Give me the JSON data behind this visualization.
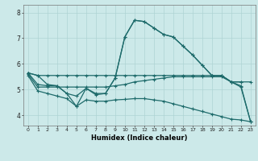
{
  "xlabel": "Humidex (Indice chaleur)",
  "x_ticks": [
    0,
    1,
    2,
    3,
    4,
    5,
    6,
    7,
    8,
    9,
    10,
    11,
    12,
    13,
    14,
    15,
    16,
    17,
    18,
    19,
    20,
    21,
    22,
    23
  ],
  "ylim": [
    3.6,
    8.3
  ],
  "xlim": [
    -0.5,
    23.5
  ],
  "bg_color": "#cce9e9",
  "line_color": "#1e6b6b",
  "grid_color": "#aed4d4",
  "lines": [
    [
      5.65,
      5.55,
      5.55,
      5.55,
      5.55,
      5.55,
      5.55,
      5.55,
      5.55,
      5.55,
      5.55,
      5.55,
      5.55,
      5.55,
      5.55,
      5.55,
      5.55,
      5.55,
      5.55,
      5.55,
      5.55,
      5.3,
      5.3,
      5.3
    ],
    [
      5.65,
      5.55,
      5.2,
      5.15,
      4.85,
      4.75,
      5.05,
      4.85,
      4.85,
      5.45,
      7.05,
      7.7,
      7.65,
      7.4,
      7.15,
      7.05,
      6.7,
      6.35,
      5.95,
      5.55,
      5.55,
      5.3,
      5.3,
      null
    ],
    [
      5.65,
      5.2,
      5.15,
      5.15,
      4.85,
      4.35,
      5.05,
      4.8,
      4.85,
      5.45,
      7.05,
      7.7,
      7.65,
      7.4,
      7.15,
      7.05,
      6.7,
      6.35,
      5.95,
      5.55,
      5.55,
      5.3,
      5.15,
      3.75
    ],
    [
      5.6,
      5.1,
      5.1,
      5.1,
      5.1,
      5.1,
      5.1,
      5.1,
      5.1,
      5.15,
      5.2,
      5.3,
      5.35,
      5.4,
      5.45,
      5.5,
      5.5,
      5.5,
      5.5,
      5.5,
      5.5,
      5.3,
      5.1,
      3.75
    ],
    [
      5.55,
      4.95,
      4.85,
      4.75,
      4.65,
      4.35,
      4.6,
      4.55,
      4.55,
      4.6,
      4.62,
      4.65,
      4.65,
      4.6,
      4.55,
      4.45,
      4.35,
      4.25,
      4.15,
      4.05,
      3.95,
      3.85,
      3.82,
      3.75
    ]
  ]
}
